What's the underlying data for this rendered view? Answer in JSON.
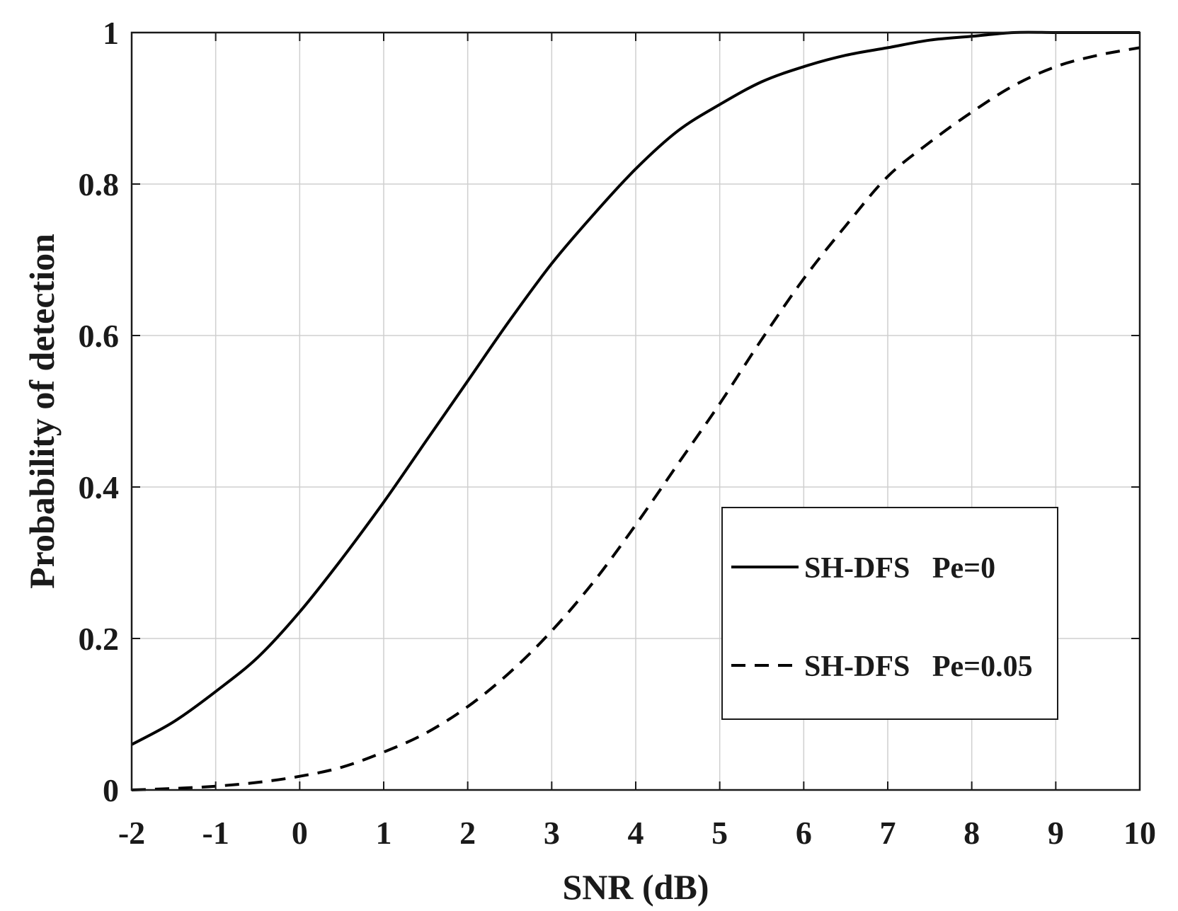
{
  "chart_data": {
    "type": "line",
    "title": "",
    "xlabel": "SNR (dB)",
    "ylabel": "Probability of detection",
    "xlim": [
      -2,
      10
    ],
    "ylim": [
      0,
      1
    ],
    "xticks": [
      -2,
      -1,
      0,
      1,
      2,
      3,
      4,
      5,
      6,
      7,
      8,
      9,
      10
    ],
    "yticks": [
      0,
      0.2,
      0.4,
      0.6,
      0.8,
      1
    ],
    "xtick_labels": [
      "-2",
      "-1",
      "0",
      "1",
      "2",
      "3",
      "4",
      "5",
      "6",
      "7",
      "8",
      "9",
      "10"
    ],
    "ytick_labels": [
      "0",
      "0.2",
      "0.4",
      "0.6",
      "0.8",
      "1"
    ],
    "grid": true,
    "legend_position": "bottom-right",
    "series": [
      {
        "name": "SH-DFS   Pe=0",
        "style": "solid",
        "color": "#000000",
        "x": [
          -2,
          -1.5,
          -1,
          -0.5,
          0,
          0.5,
          1,
          1.5,
          2,
          2.5,
          3,
          3.5,
          4,
          4.5,
          5,
          5.5,
          6,
          6.5,
          7,
          7.5,
          8,
          8.5,
          9,
          9.5,
          10
        ],
        "y": [
          0.06,
          0.09,
          0.13,
          0.175,
          0.235,
          0.305,
          0.38,
          0.46,
          0.54,
          0.62,
          0.695,
          0.76,
          0.82,
          0.87,
          0.905,
          0.935,
          0.955,
          0.97,
          0.98,
          0.99,
          0.995,
          1.0,
          1.0,
          1.0,
          1.0
        ]
      },
      {
        "name": "SH-DFS   Pe=0.05",
        "style": "dashed",
        "color": "#000000",
        "x": [
          -2,
          -1.5,
          -1,
          -0.5,
          0,
          0.5,
          1,
          1.5,
          2,
          2.5,
          3,
          3.5,
          4,
          4.5,
          5,
          5.5,
          6,
          6.5,
          7,
          7.5,
          8,
          8.5,
          9,
          9.5,
          10
        ],
        "y": [
          0.0,
          0.002,
          0.005,
          0.01,
          0.018,
          0.03,
          0.05,
          0.075,
          0.11,
          0.155,
          0.21,
          0.275,
          0.35,
          0.43,
          0.51,
          0.595,
          0.675,
          0.745,
          0.81,
          0.855,
          0.895,
          0.93,
          0.955,
          0.97,
          0.98
        ]
      }
    ]
  }
}
